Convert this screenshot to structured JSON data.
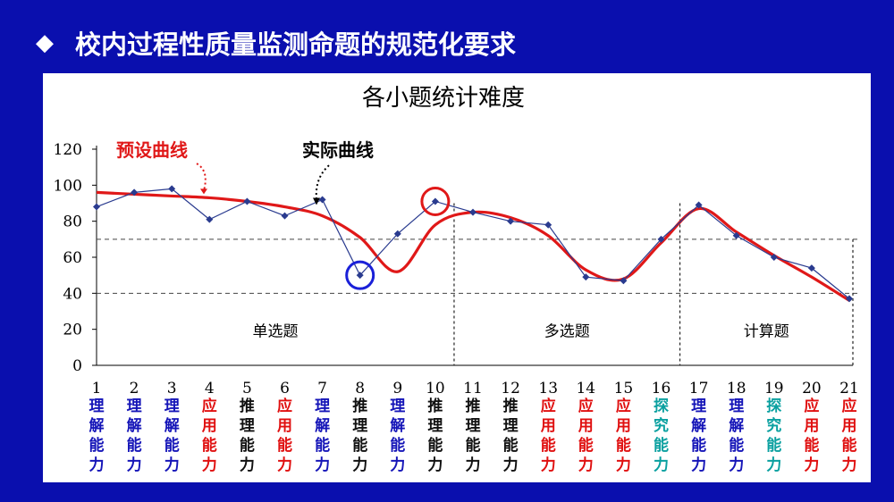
{
  "header": {
    "bullet": "◆",
    "title": "校内过程性质量监测命题的规范化要求"
  },
  "colors": {
    "background": "#0a0fae",
    "preset_curve": "#e01818",
    "actual_curve": "#2a3b8f",
    "ability_理解能力": "#1515b8",
    "ability_应用能力": "#e01010",
    "ability_推理能力": "#111111",
    "ability_探究能力": "#0aa0a0",
    "highlight_high": "#e01818",
    "highlight_low": "#1a20d8"
  },
  "chart_data": {
    "type": "line",
    "title": "各小题统计难度",
    "x": [
      1,
      2,
      3,
      4,
      5,
      6,
      7,
      8,
      9,
      10,
      11,
      12,
      13,
      14,
      15,
      16,
      17,
      18,
      19,
      20,
      21
    ],
    "categories": [
      "1",
      "2",
      "3",
      "4",
      "5",
      "6",
      "7",
      "8",
      "9",
      "10",
      "11",
      "12",
      "13",
      "14",
      "15",
      "16",
      "17",
      "18",
      "19",
      "20",
      "21"
    ],
    "ylim": [
      0,
      120
    ],
    "yticks": [
      0,
      20,
      40,
      60,
      80,
      100,
      120
    ],
    "reference_lines": [
      40,
      70
    ],
    "series": [
      {
        "name": "实际曲线",
        "values": [
          88,
          96,
          98,
          81,
          91,
          83,
          92,
          50,
          73,
          91,
          85,
          80,
          78,
          49,
          47,
          70,
          89,
          72,
          60,
          54,
          37
        ]
      },
      {
        "name": "预设曲线",
        "values": [
          96,
          95,
          94,
          93,
          91,
          88,
          83,
          71,
          52,
          78,
          85,
          82,
          72,
          53,
          48,
          68,
          87,
          74,
          61,
          49,
          36
        ]
      }
    ],
    "annotations": [
      "预设曲线",
      "实际曲线"
    ],
    "sections": [
      {
        "label": "单选题",
        "from": 1,
        "to": 10
      },
      {
        "label": "多选题",
        "from": 11,
        "to": 16
      },
      {
        "label": "计算题",
        "from": 17,
        "to": 21
      }
    ],
    "abilities": [
      "理解能力",
      "理解能力",
      "理解能力",
      "应用能力",
      "推理能力",
      "应用能力",
      "理解能力",
      "推理能力",
      "理解能力",
      "推理能力",
      "推理能力",
      "推理能力",
      "应用能力",
      "应用能力",
      "应用能力",
      "探究能力",
      "理解能力",
      "理解能力",
      "探究能力",
      "应用能力",
      "应用能力"
    ],
    "highlighted_points": [
      {
        "x": 10,
        "type": "high"
      },
      {
        "x": 8,
        "type": "low"
      }
    ]
  }
}
